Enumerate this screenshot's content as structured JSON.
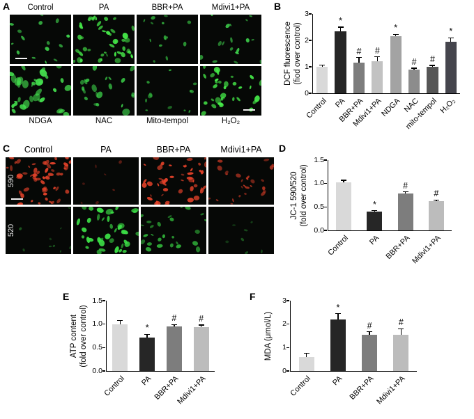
{
  "panels": {
    "a": {
      "letter": "A",
      "top_labels": [
        "Control",
        "PA",
        "BBR+PA",
        "Mdivi1+PA"
      ],
      "bottom_labels": [
        "NDGA",
        "NAC",
        "Mito-tempol",
        "H₂O₂"
      ],
      "images": [
        {
          "name": "control",
          "color": "#3fd44d",
          "count": 16,
          "min": 2,
          "max": 4.5,
          "alpha": 0.95,
          "seed": 101,
          "scalebar": "left"
        },
        {
          "name": "pa",
          "color": "#45e848",
          "count": 46,
          "min": 2.2,
          "max": 5.2,
          "alpha": 1,
          "seed": 102
        },
        {
          "name": "bbr-pa",
          "color": "#38c944",
          "count": 14,
          "min": 1.8,
          "max": 4,
          "alpha": 0.85,
          "seed": 103
        },
        {
          "name": "mdivi1-pa",
          "color": "#3fd44d",
          "count": 17,
          "min": 2,
          "max": 4.5,
          "alpha": 0.9,
          "seed": 104
        },
        {
          "name": "ndga",
          "color": "#44e04e",
          "count": 34,
          "min": 3,
          "max": 7,
          "alpha": 0.95,
          "seed": 105
        },
        {
          "name": "nac",
          "color": "#3cd24a",
          "count": 21,
          "min": 2.8,
          "max": 6.5,
          "alpha": 0.9,
          "seed": 106
        },
        {
          "name": "mito-tempol",
          "color": "#36c642",
          "count": 12,
          "min": 1.8,
          "max": 4,
          "alpha": 0.85,
          "seed": 107
        },
        {
          "name": "h2o2",
          "color": "#45e848",
          "count": 32,
          "min": 2.4,
          "max": 5.5,
          "alpha": 1,
          "seed": 108,
          "scalebar": "right"
        }
      ]
    },
    "b": {
      "letter": "B"
    },
    "c": {
      "letter": "C",
      "top_labels": [
        "Control",
        "PA",
        "BBR+PA",
        "Mdivi1+PA"
      ],
      "row_labels": [
        "590",
        "520"
      ],
      "images": [
        {
          "name": "590-control",
          "color": "#e8432a",
          "count": 55,
          "min": 2,
          "max": 5,
          "alpha": 0.95,
          "seed": 201,
          "scalebar": "left"
        },
        {
          "name": "590-pa",
          "color": "#b93322",
          "count": 7,
          "min": 1.6,
          "max": 3.2,
          "alpha": 0.5,
          "seed": 202
        },
        {
          "name": "590-bbr-pa",
          "color": "#e8432a",
          "count": 48,
          "min": 2,
          "max": 5,
          "alpha": 0.95,
          "seed": 203
        },
        {
          "name": "590-mdivi1-pa",
          "color": "#d63c26",
          "count": 26,
          "min": 1.8,
          "max": 4.4,
          "alpha": 0.8,
          "seed": 204
        },
        {
          "name": "520-control",
          "color": "#2f9e36",
          "count": 9,
          "min": 1.6,
          "max": 3.4,
          "alpha": 0.55,
          "seed": 205
        },
        {
          "name": "520-pa",
          "color": "#3bdc45",
          "count": 38,
          "min": 2.6,
          "max": 6.2,
          "alpha": 1,
          "seed": 206
        },
        {
          "name": "520-bbr-pa",
          "color": "#35c63f",
          "count": 26,
          "min": 2,
          "max": 5,
          "alpha": 0.85,
          "seed": 207
        },
        {
          "name": "520-mdivi1-pa",
          "color": "#2f9e36",
          "count": 7,
          "min": 1.6,
          "max": 3.2,
          "alpha": 0.5,
          "seed": 208
        }
      ]
    },
    "d": {
      "letter": "D"
    },
    "e": {
      "letter": "E"
    },
    "f": {
      "letter": "F"
    }
  },
  "chart_data": [
    {
      "type": "bar",
      "panel": "B",
      "ylabel_lines": [
        "DCF fluorescence",
        "(fiod over control)"
      ],
      "categories": [
        "Control",
        "PA",
        "BBR+PA",
        "Mdivi1+PA",
        "NDGA",
        "NAC",
        "mito-tempol",
        "H₂O₂"
      ],
      "values": [
        1.0,
        2.35,
        1.15,
        1.2,
        2.15,
        0.9,
        1.0,
        1.95
      ],
      "errors": [
        0.07,
        0.15,
        0.2,
        0.18,
        0.08,
        0.05,
        0.05,
        0.15
      ],
      "annotations": [
        "",
        "*",
        "#",
        "#",
        "*",
        "#",
        "#",
        "*"
      ],
      "bar_colors": [
        "#d9d9d9",
        "#262626",
        "#7d7d7d",
        "#c2c2c2",
        "#a3a3a3",
        "#8c8c8c",
        "#565656",
        "#45454d"
      ],
      "ylim": [
        0,
        3
      ],
      "yticks": [
        {
          "v": 0,
          "l": "0"
        },
        {
          "v": 1,
          "l": "1"
        },
        {
          "v": 2,
          "l": "2"
        },
        {
          "v": 3,
          "l": "3"
        }
      ],
      "legend": "none",
      "grid": false
    },
    {
      "type": "bar",
      "panel": "D",
      "ylabel_lines": [
        "JC-1 590/520",
        "(fold over control)"
      ],
      "categories": [
        "Control",
        "PA",
        "BBR+PA",
        "Mdivi1+PA"
      ],
      "values": [
        1.02,
        0.4,
        0.78,
        0.62
      ],
      "errors": [
        0.05,
        0.02,
        0.04,
        0.03
      ],
      "annotations": [
        "",
        "*",
        "#",
        "#"
      ],
      "bar_colors": [
        "#d9d9d9",
        "#262626",
        "#7d7d7d",
        "#bcbcbc"
      ],
      "ylim": [
        0,
        1.5
      ],
      "yticks": [
        {
          "v": 0,
          "l": "0.0"
        },
        {
          "v": 0.5,
          "l": "0.5"
        },
        {
          "v": 1,
          "l": "1.0"
        },
        {
          "v": 1.5,
          "l": "1.5"
        }
      ],
      "legend": "none",
      "grid": false
    },
    {
      "type": "bar",
      "panel": "E",
      "ylabel_lines": [
        "ATP content",
        "(fold over control)"
      ],
      "categories": [
        "Control",
        "PA",
        "BBR+PA",
        "Mdivi1+PA"
      ],
      "values": [
        1.0,
        0.72,
        0.95,
        0.93
      ],
      "errors": [
        0.08,
        0.06,
        0.04,
        0.05
      ],
      "annotations": [
        "",
        "*",
        "#",
        "#"
      ],
      "bar_colors": [
        "#d9d9d9",
        "#262626",
        "#7d7d7d",
        "#bcbcbc"
      ],
      "ylim": [
        0,
        1.5
      ],
      "yticks": [
        {
          "v": 0,
          "l": "0.0"
        },
        {
          "v": 0.5,
          "l": "0.5"
        },
        {
          "v": 1,
          "l": "1.0"
        },
        {
          "v": 1.5,
          "l": "1.5"
        }
      ],
      "legend": "none",
      "grid": false
    },
    {
      "type": "bar",
      "panel": "F",
      "ylabel_lines": [
        "MDA (μmol/L)"
      ],
      "categories": [
        "Control",
        "PA",
        "BBR+PA",
        "Mdivi1+PA"
      ],
      "values": [
        0.6,
        2.2,
        1.55,
        1.55
      ],
      "errors": [
        0.15,
        0.25,
        0.12,
        0.25
      ],
      "annotations": [
        "",
        "*",
        "#",
        "#"
      ],
      "bar_colors": [
        "#d9d9d9",
        "#262626",
        "#7d7d7d",
        "#bcbcbc"
      ],
      "ylim": [
        0,
        3
      ],
      "yticks": [
        {
          "v": 0,
          "l": "0"
        },
        {
          "v": 1,
          "l": "1"
        },
        {
          "v": 2,
          "l": "2"
        },
        {
          "v": 3,
          "l": "3"
        }
      ],
      "legend": "none",
      "grid": false
    }
  ]
}
